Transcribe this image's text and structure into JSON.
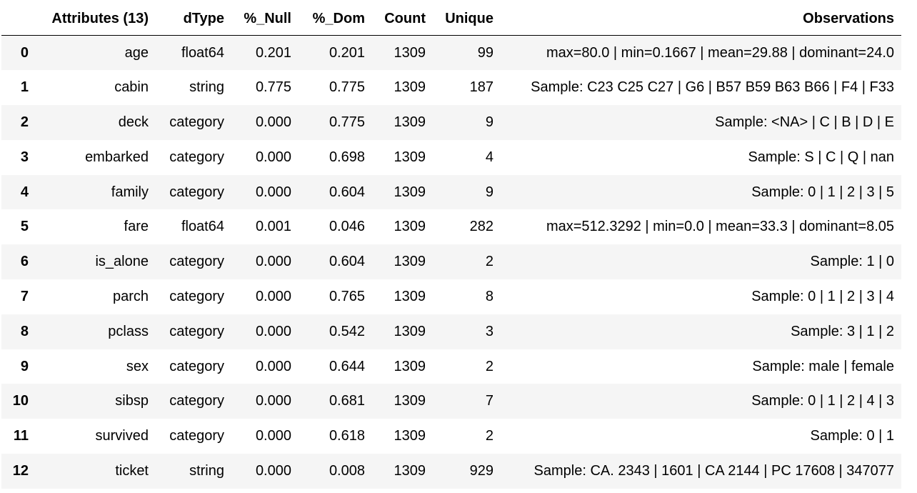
{
  "table": {
    "columns": [
      "",
      "Attributes (13)",
      "dType",
      "%_Null",
      "%_Dom",
      "Count",
      "Unique",
      "Observations"
    ],
    "rows": [
      {
        "index": "0",
        "attribute": "age",
        "dtype": "float64",
        "null": "0.201",
        "dom": "0.201",
        "count": "1309",
        "unique": "99",
        "observations": "max=80.0 | min=0.1667 | mean=29.88 | dominant=24.0"
      },
      {
        "index": "1",
        "attribute": "cabin",
        "dtype": "string",
        "null": "0.775",
        "dom": "0.775",
        "count": "1309",
        "unique": "187",
        "observations": "Sample: C23 C25 C27 | G6 | B57 B59 B63 B66 | F4 | F33"
      },
      {
        "index": "2",
        "attribute": "deck",
        "dtype": "category",
        "null": "0.000",
        "dom": "0.775",
        "count": "1309",
        "unique": "9",
        "observations": "Sample: <NA> | C | B | D | E"
      },
      {
        "index": "3",
        "attribute": "embarked",
        "dtype": "category",
        "null": "0.000",
        "dom": "0.698",
        "count": "1309",
        "unique": "4",
        "observations": "Sample: S | C | Q | nan"
      },
      {
        "index": "4",
        "attribute": "family",
        "dtype": "category",
        "null": "0.000",
        "dom": "0.604",
        "count": "1309",
        "unique": "9",
        "observations": "Sample: 0 | 1 | 2 | 3 | 5"
      },
      {
        "index": "5",
        "attribute": "fare",
        "dtype": "float64",
        "null": "0.001",
        "dom": "0.046",
        "count": "1309",
        "unique": "282",
        "observations": "max=512.3292 | min=0.0 | mean=33.3 | dominant=8.05"
      },
      {
        "index": "6",
        "attribute": "is_alone",
        "dtype": "category",
        "null": "0.000",
        "dom": "0.604",
        "count": "1309",
        "unique": "2",
        "observations": "Sample: 1 | 0"
      },
      {
        "index": "7",
        "attribute": "parch",
        "dtype": "category",
        "null": "0.000",
        "dom": "0.765",
        "count": "1309",
        "unique": "8",
        "observations": "Sample: 0 | 1 | 2 | 3 | 4"
      },
      {
        "index": "8",
        "attribute": "pclass",
        "dtype": "category",
        "null": "0.000",
        "dom": "0.542",
        "count": "1309",
        "unique": "3",
        "observations": "Sample: 3 | 1 | 2"
      },
      {
        "index": "9",
        "attribute": "sex",
        "dtype": "category",
        "null": "0.000",
        "dom": "0.644",
        "count": "1309",
        "unique": "2",
        "observations": "Sample: male | female"
      },
      {
        "index": "10",
        "attribute": "sibsp",
        "dtype": "category",
        "null": "0.000",
        "dom": "0.681",
        "count": "1309",
        "unique": "7",
        "observations": "Sample: 0 | 1 | 2 | 4 | 3"
      },
      {
        "index": "11",
        "attribute": "survived",
        "dtype": "category",
        "null": "0.000",
        "dom": "0.618",
        "count": "1309",
        "unique": "2",
        "observations": "Sample: 0 | 1"
      },
      {
        "index": "12",
        "attribute": "ticket",
        "dtype": "string",
        "null": "0.000",
        "dom": "0.008",
        "count": "1309",
        "unique": "929",
        "observations": "Sample: CA. 2343 | 1601 | CA 2144 | PC 17608 | 347077"
      }
    ]
  },
  "colors": {
    "stripe": "#f5f5f5",
    "background": "#ffffff",
    "text": "#000000",
    "header_rule": "#000000"
  }
}
